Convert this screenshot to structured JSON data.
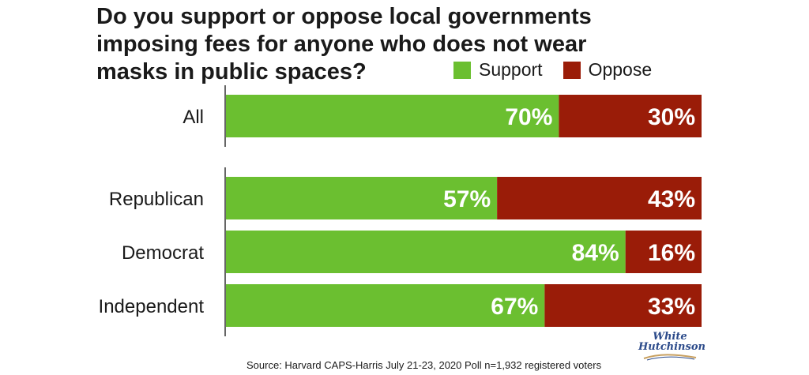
{
  "chart_data": {
    "type": "bar",
    "orientation": "horizontal",
    "stacked": true,
    "title": "Do you support or oppose local governments imposing fees for anyone who does not wear masks in public spaces?",
    "categories": [
      "All",
      "Republican",
      "Democrat",
      "Independent"
    ],
    "series": [
      {
        "name": "Support",
        "color": "#6bbf30",
        "values": [
          70,
          57,
          84,
          67
        ],
        "labels": [
          "70%",
          "57%",
          "84%",
          "67%"
        ]
      },
      {
        "name": "Oppose",
        "color": "#9a1c08",
        "values": [
          30,
          43,
          16,
          33
        ],
        "labels": [
          "30%",
          "43%",
          "16%",
          "33%"
        ]
      }
    ],
    "xlim": [
      0,
      100
    ],
    "legend_position": "top-right",
    "grid": false
  },
  "source": "Source: Harvard CAPS-Harris July 21-23, 2020 Poll n=1,932 registered voters",
  "logo": {
    "line1": "White",
    "line2": "Hutchinson"
  }
}
